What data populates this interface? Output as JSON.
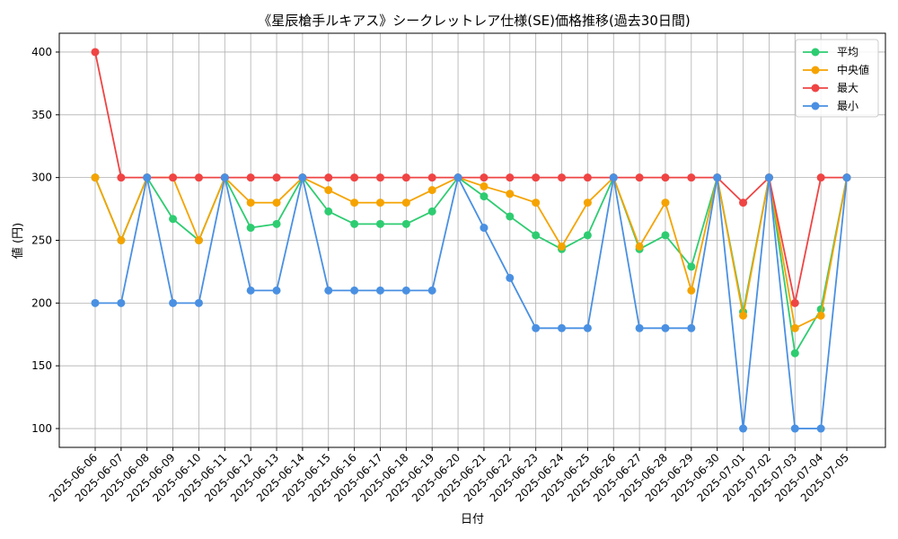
{
  "chart_data": {
    "type": "line",
    "title": "《星辰槍手ルキアス》シークレットレア仕様(SE)価格推移(過去30日間)",
    "xlabel": "日付",
    "ylabel": "値 (円)",
    "ylim": [
      85,
      415
    ],
    "yticks": [
      100,
      150,
      200,
      250,
      300,
      350,
      400
    ],
    "grid": true,
    "legend_position": "top-right",
    "categories": [
      "2025-06-06",
      "2025-06-07",
      "2025-06-08",
      "2025-06-09",
      "2025-06-10",
      "2025-06-11",
      "2025-06-12",
      "2025-06-13",
      "2025-06-14",
      "2025-06-15",
      "2025-06-16",
      "2025-06-17",
      "2025-06-18",
      "2025-06-19",
      "2025-06-20",
      "2025-06-21",
      "2025-06-22",
      "2025-06-23",
      "2025-06-24",
      "2025-06-25",
      "2025-06-26",
      "2025-06-27",
      "2025-06-28",
      "2025-06-29",
      "2025-06-30",
      "2025-07-01",
      "2025-07-02",
      "2025-07-03",
      "2025-07-04",
      "2025-07-05"
    ],
    "series": [
      {
        "name": "平均",
        "color": "#2ecc71",
        "values": [
          300,
          250,
          300,
          267,
          250,
          300,
          260,
          263,
          300,
          273,
          263,
          263,
          263,
          273,
          300,
          285,
          269,
          254,
          243,
          254,
          300,
          243,
          254,
          229,
          300,
          193,
          300,
          160,
          195,
          300
        ]
      },
      {
        "name": "中央値",
        "color": "#f5a300",
        "values": [
          300,
          250,
          300,
          300,
          250,
          300,
          280,
          280,
          300,
          290,
          280,
          280,
          280,
          290,
          300,
          293,
          287,
          280,
          245,
          280,
          300,
          245,
          280,
          210,
          300,
          190,
          300,
          180,
          190,
          300
        ]
      },
      {
        "name": "最大",
        "color": "#ef4444",
        "values": [
          400,
          300,
          300,
          300,
          300,
          300,
          300,
          300,
          300,
          300,
          300,
          300,
          300,
          300,
          300,
          300,
          300,
          300,
          300,
          300,
          300,
          300,
          300,
          300,
          300,
          280,
          300,
          200,
          300,
          300
        ]
      },
      {
        "name": "最小",
        "color": "#4a90e2",
        "values": [
          200,
          200,
          300,
          200,
          200,
          300,
          210,
          210,
          300,
          210,
          210,
          210,
          210,
          210,
          300,
          260,
          220,
          180,
          180,
          180,
          300,
          180,
          180,
          180,
          300,
          100,
          300,
          100,
          100,
          300
        ]
      }
    ]
  }
}
